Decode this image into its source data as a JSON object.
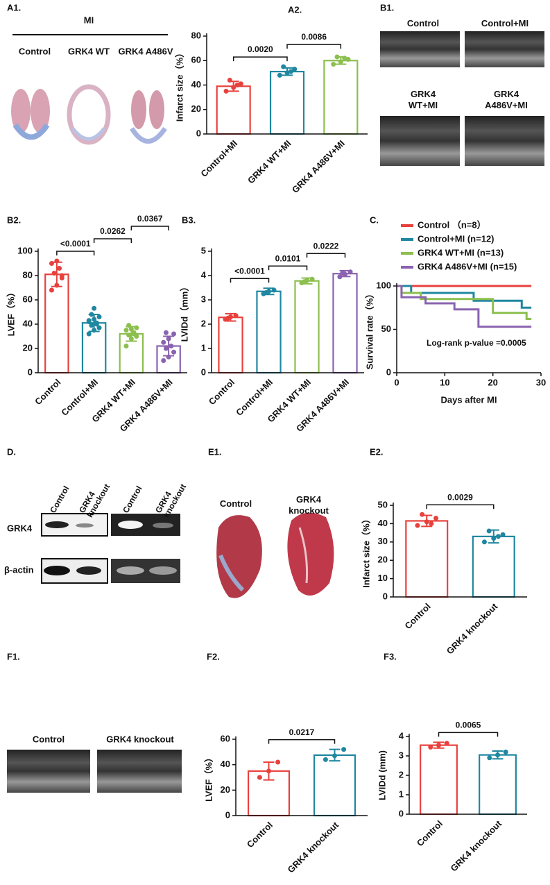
{
  "chart_data": [
    {
      "type": "bar",
      "label": "A2.",
      "ylabel": "Infarct size（%）",
      "categories": [
        "Control+MI",
        "GRK4 WT+MI",
        "GRK4 A486V+MI"
      ],
      "colors": [
        "#e8413d",
        "#1f87a0",
        "#8cbf4e"
      ],
      "values": [
        39,
        51,
        60
      ],
      "errors": [
        4,
        3,
        3
      ],
      "points": [
        [
          35,
          38,
          41,
          44,
          40
        ],
        [
          48,
          50,
          53,
          55,
          51
        ],
        [
          57,
          59,
          61,
          63,
          62
        ]
      ],
      "ylim": [
        0,
        80
      ],
      "yticks": [
        0,
        20,
        40,
        60,
        80
      ],
      "significance": [
        {
          "from": 0,
          "to": 1,
          "label": "0.0020"
        },
        {
          "from": 1,
          "to": 2,
          "label": "0.0086"
        }
      ]
    },
    {
      "type": "bar",
      "label": "B2.",
      "ylabel": "LVEF（%）",
      "categories": [
        "Control",
        "Control+MI",
        "GRK4 WT+MI",
        "GRK4 A486V+MI"
      ],
      "colors": [
        "#e8413d",
        "#1f87a0",
        "#8cbf4e",
        "#8a63b0"
      ],
      "values": [
        81,
        41,
        32,
        22
      ],
      "errors": [
        10,
        7,
        6,
        8
      ],
      "points": [
        [
          68,
          72,
          78,
          82,
          86,
          90,
          92,
          80
        ],
        [
          32,
          35,
          37,
          39,
          40,
          42,
          44,
          46,
          48,
          41,
          43,
          53
        ],
        [
          22,
          28,
          30,
          31,
          33,
          35,
          36,
          37,
          39,
          32
        ],
        [
          10,
          13,
          17,
          20,
          22,
          25,
          28,
          32,
          33
        ]
      ],
      "ylim": [
        0,
        100
      ],
      "yticks": [
        0,
        20,
        40,
        60,
        80,
        100
      ],
      "significance": [
        {
          "from": 0,
          "to": 1,
          "label": "<0.0001"
        },
        {
          "from": 1,
          "to": 2,
          "label": "0.0262"
        },
        {
          "from": 2,
          "to": 3,
          "label": "0.0367"
        }
      ]
    },
    {
      "type": "bar",
      "label": "B3.",
      "ylabel": "LVIDd（mm）",
      "categories": [
        "Control",
        "Control+MI",
        "GRK4 WT+MI",
        "GRK4 A486V+MI"
      ],
      "colors": [
        "#e8413d",
        "#1f87a0",
        "#8cbf4e",
        "#8a63b0"
      ],
      "values": [
        2.28,
        3.35,
        3.78,
        4.08
      ],
      "errors": [
        0.15,
        0.13,
        0.12,
        0.12
      ],
      "points": [
        [
          2.2,
          2.3,
          2.35,
          2.25
        ],
        [
          3.25,
          3.35,
          3.4,
          3.3
        ],
        [
          3.7,
          3.8,
          3.85,
          3.75
        ],
        [
          3.95,
          4.05,
          4.15,
          4.1
        ]
      ],
      "ylim": [
        0,
        5
      ],
      "yticks": [
        0,
        1,
        2,
        3,
        4,
        5
      ],
      "significance": [
        {
          "from": 0,
          "to": 1,
          "label": "<0.0001"
        },
        {
          "from": 1,
          "to": 2,
          "label": "0.0101"
        },
        {
          "from": 2,
          "to": 3,
          "label": "0.0222"
        }
      ]
    },
    {
      "type": "line",
      "label": "C.",
      "ylabel": "Survival rate（%）",
      "xlabel": "Days after MI",
      "annotation": "Log-rank p-value =0.0005",
      "xlim": [
        0,
        30
      ],
      "xticks": [
        0,
        10,
        20,
        30
      ],
      "ylim": [
        0,
        100
      ],
      "yticks": [
        0,
        50,
        100
      ],
      "series": [
        {
          "name": "Control （n=8）",
          "color": "#e8413d",
          "x": [
            0,
            28
          ],
          "values": [
            100,
            100
          ]
        },
        {
          "name": "Control+MI (n=12)",
          "color": "#1f87a0",
          "x": [
            0,
            3,
            3,
            16,
            16,
            26,
            26,
            28
          ],
          "values": [
            100,
            100,
            92,
            92,
            83,
            83,
            75,
            75
          ]
        },
        {
          "name": "GRK4 WT+MI (n=13)",
          "color": "#8cbf4e",
          "x": [
            0,
            1,
            1,
            5,
            5,
            20,
            20,
            27,
            27,
            28
          ],
          "values": [
            100,
            100,
            92,
            92,
            85,
            85,
            69,
            69,
            62,
            62
          ]
        },
        {
          "name": "GRK4 A486V+MI (n=15)",
          "color": "#8a63b0",
          "x": [
            0,
            1,
            1,
            6,
            6,
            12,
            12,
            17,
            17,
            28
          ],
          "values": [
            100,
            100,
            87,
            87,
            80,
            80,
            73,
            73,
            53,
            53
          ]
        }
      ]
    },
    {
      "type": "bar",
      "label": "E2.",
      "ylabel": "Infarct size（%）",
      "categories": [
        "Control",
        "GRK4 knockout"
      ],
      "colors": [
        "#e8413d",
        "#1f87a0"
      ],
      "values": [
        41.5,
        33
      ],
      "errors": [
        3,
        3.5
      ],
      "points": [
        [
          39,
          41,
          43,
          45,
          40
        ],
        [
          30,
          32,
          34,
          36,
          33
        ]
      ],
      "ylim": [
        0,
        50
      ],
      "yticks": [
        0,
        10,
        20,
        30,
        40,
        50
      ],
      "significance": [
        {
          "from": 0,
          "to": 1,
          "label": "0.0029"
        }
      ]
    },
    {
      "type": "bar",
      "label": "F2.",
      "ylabel": "LVEF（%）",
      "categories": [
        "Control",
        "GRK4 knockout"
      ],
      "colors": [
        "#e8413d",
        "#1f87a0"
      ],
      "values": [
        35,
        47.5
      ],
      "errors": [
        7,
        4.5
      ],
      "points": [
        [
          30,
          35,
          42
        ],
        [
          44,
          47,
          52
        ]
      ],
      "ylim": [
        0,
        60
      ],
      "yticks": [
        0,
        20,
        40,
        60
      ],
      "significance": [
        {
          "from": 0,
          "to": 1,
          "label": "0.0217"
        }
      ]
    },
    {
      "type": "bar",
      "label": "F3.",
      "ylabel": "LVIDd (mm)",
      "categories": [
        "Control",
        "GRK4 knockout"
      ],
      "colors": [
        "#e8413d",
        "#1f87a0"
      ],
      "values": [
        3.55,
        3.05
      ],
      "errors": [
        0.15,
        0.2
      ],
      "points": [
        [
          3.45,
          3.55,
          3.65
        ],
        [
          2.9,
          3.05,
          3.2
        ]
      ],
      "ylim": [
        0,
        4
      ],
      "yticks": [
        0,
        1,
        2,
        3,
        4
      ],
      "significance": [
        {
          "from": 0,
          "to": 1,
          "label": "0.0065"
        }
      ]
    }
  ],
  "images": [
    {
      "label": "A1.",
      "title": "MI",
      "captions": [
        "Control",
        "GRK4 WT",
        "GRK4 A486V"
      ]
    },
    {
      "label": "B1.",
      "captions": [
        "Control",
        "Control+MI",
        "GRK4 WT+MI",
        "GRK4 A486V+MI"
      ]
    },
    {
      "label": "D.",
      "lanes": [
        "Control",
        "GRK4 knockout",
        "Control",
        "GRK4 knockout"
      ],
      "rows": [
        "GRK4",
        "β-actin"
      ]
    },
    {
      "label": "E1.",
      "captions": [
        "Control",
        "GRK4 knockout"
      ]
    },
    {
      "label": "F1.",
      "captions": [
        "Control",
        "GRK4 knockout"
      ]
    }
  ]
}
